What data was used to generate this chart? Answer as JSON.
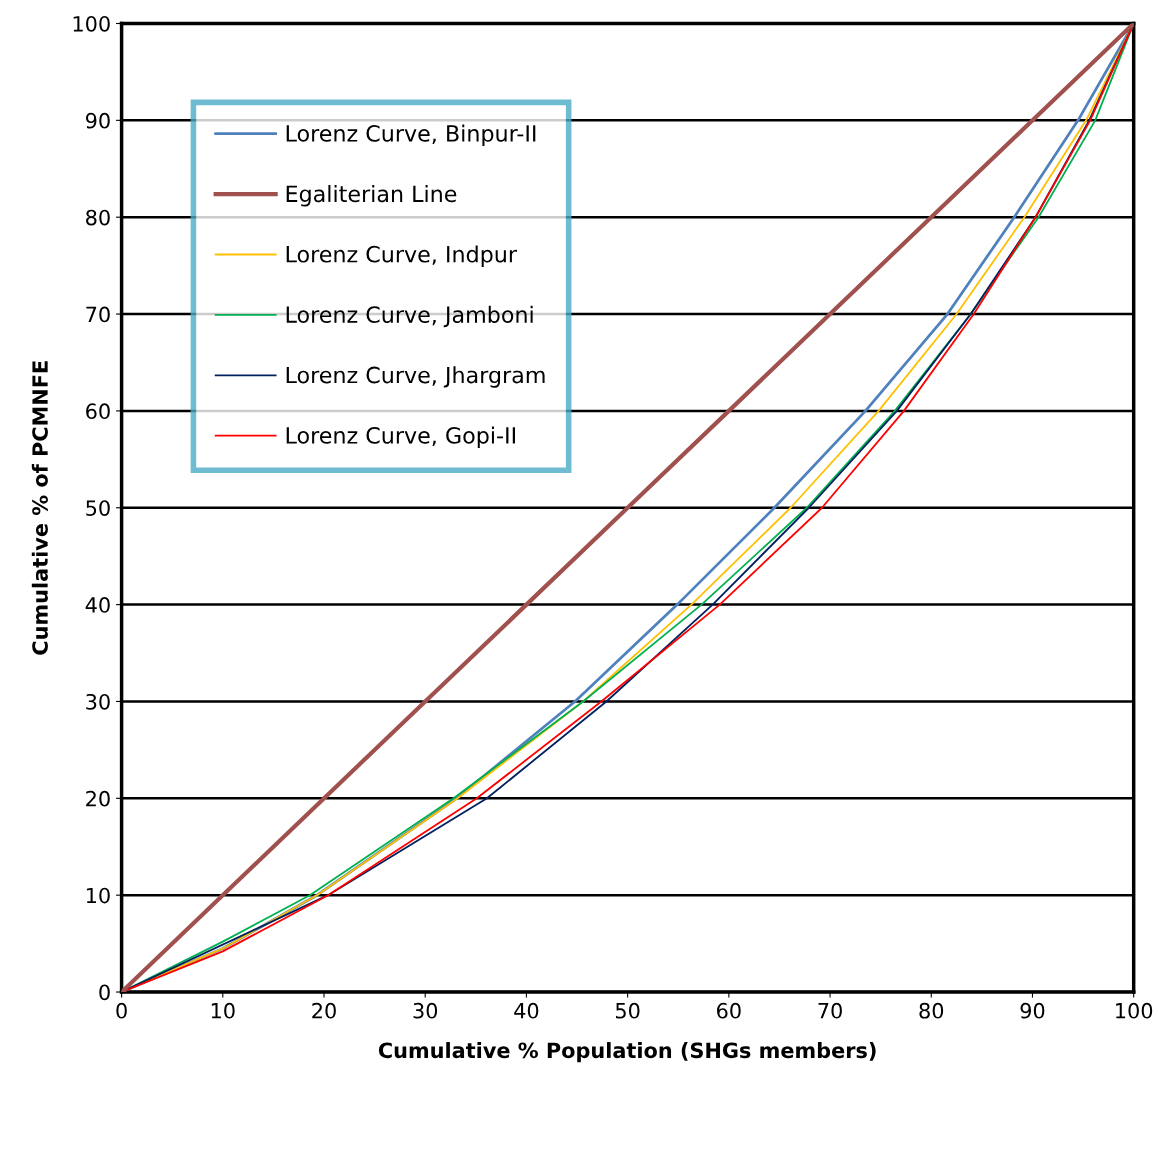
{
  "chart_data": {
    "type": "line",
    "xlabel": "Cumulative % Population (SHGs members)",
    "ylabel": "Cumulative % of PCMNFE",
    "xlim": [
      0,
      100
    ],
    "ylim": [
      0,
      100
    ],
    "xticks": [
      0,
      10,
      20,
      30,
      40,
      50,
      60,
      70,
      80,
      90,
      100
    ],
    "yticks": [
      0,
      10,
      20,
      30,
      40,
      50,
      60,
      70,
      80,
      90,
      100
    ],
    "grid": "y",
    "legend": "top left",
    "marker": "none",
    "line_style": "solid",
    "series": [
      {
        "name": "Lorenz Curve, Binpur-II",
        "color": "#4f81bd",
        "x": [
          0,
          10,
          19.3,
          33.1,
          44.8,
          54.9,
          64.5,
          73.5,
          81.6,
          88.2,
          94.5,
          100
        ],
        "values": [
          0,
          4.5,
          10,
          20,
          30,
          40,
          50,
          60,
          70,
          80,
          90,
          100
        ]
      },
      {
        "name": "Egaliterian Line",
        "color": "#a0504d",
        "x": [
          0,
          100
        ],
        "values": [
          0,
          100
        ]
      },
      {
        "name": "Lorenz Curve, Indpur",
        "color": "#ffc000",
        "x": [
          0,
          10,
          19.3,
          33.2,
          45.6,
          56.3,
          66.1,
          74.8,
          82.5,
          89.2,
          95.3,
          100
        ],
        "values": [
          0,
          4.5,
          10,
          20,
          30,
          40,
          50,
          60,
          70,
          80,
          90,
          100
        ]
      },
      {
        "name": "Lorenz Curve, Jamboni",
        "color": "#00b050",
        "x": [
          0,
          10,
          18.6,
          32.8,
          45.6,
          57.3,
          67.7,
          76.4,
          83.9,
          90.6,
          96.2,
          100
        ],
        "values": [
          0,
          5.2,
          10,
          20,
          30,
          40,
          50,
          60,
          70,
          80,
          90,
          100
        ]
      },
      {
        "name": "Lorenz Curve, Jhargram",
        "color": "#002060",
        "x": [
          0,
          20.4,
          36.1,
          47.9,
          58.4,
          67.9,
          76.6,
          83.9,
          90.3,
          95.6,
          100
        ],
        "values": [
          0,
          10,
          20,
          30,
          40,
          50,
          60,
          70,
          80,
          90,
          100
        ]
      },
      {
        "name": "Lorenz Curve, Gopi-II",
        "color": "#ff0000",
        "x": [
          0,
          10,
          20.4,
          35.1,
          47.4,
          59.1,
          69.2,
          77.3,
          84.2,
          90.3,
          95.7,
          100
        ],
        "values": [
          0,
          4.2,
          10,
          20,
          30,
          40,
          50,
          60,
          70,
          80,
          90,
          100
        ]
      }
    ]
  }
}
